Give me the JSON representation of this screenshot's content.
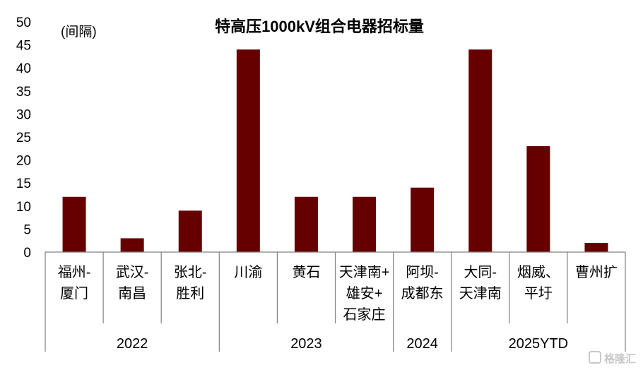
{
  "chart_data": {
    "type": "bar",
    "title": "特高压1000kV组合电器招标量",
    "unit_label": "(间隔)",
    "ylim": [
      0,
      50
    ],
    "yticks": [
      0,
      5,
      10,
      15,
      20,
      25,
      30,
      35,
      40,
      45,
      50
    ],
    "categories": [
      {
        "lines": [
          "福州-",
          "厦门"
        ],
        "value": 12
      },
      {
        "lines": [
          "武汉-",
          "南昌"
        ],
        "value": 3
      },
      {
        "lines": [
          "张北-",
          "胜利"
        ],
        "value": 9
      },
      {
        "lines": [
          "川渝"
        ],
        "value": 44
      },
      {
        "lines": [
          "黄石"
        ],
        "value": 12
      },
      {
        "lines": [
          "天津南+",
          "雄安+",
          "石家庄"
        ],
        "value": 12
      },
      {
        "lines": [
          "阿坝-",
          "成都东"
        ],
        "value": 14
      },
      {
        "lines": [
          "大同-",
          "天津南"
        ],
        "value": 44
      },
      {
        "lines": [
          "烟威、",
          "平圩"
        ],
        "value": 23
      },
      {
        "lines": [
          "曹州扩"
        ],
        "value": 2
      }
    ],
    "groups": [
      {
        "label": "2022",
        "span": [
          0,
          2
        ]
      },
      {
        "label": "2023",
        "span": [
          3,
          5
        ]
      },
      {
        "label": "2024",
        "span": [
          6,
          6
        ]
      },
      {
        "label": "2025YTD",
        "span": [
          7,
          9
        ]
      }
    ],
    "grid": false,
    "legend": "none",
    "bar_color": "#660000"
  },
  "watermark": "格隆汇"
}
